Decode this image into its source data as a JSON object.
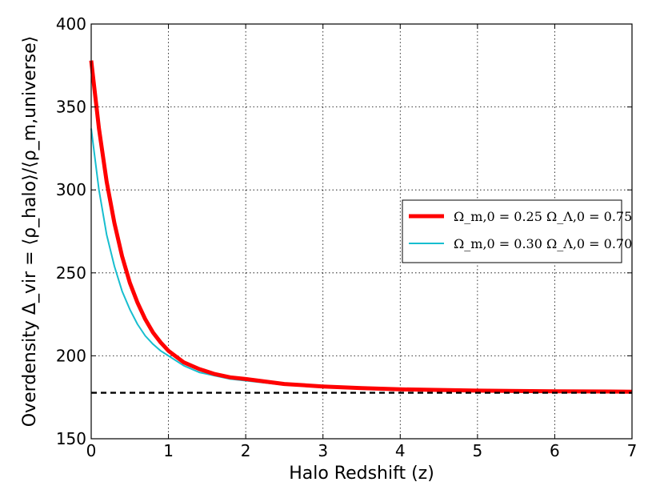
{
  "chart_data": {
    "type": "line",
    "title": "",
    "xlabel": "Halo Redshift (z)",
    "ylabel": "Overdensity Δ_vir = ⟨ρ_halo⟩/⟨ρ_m,universe⟩",
    "xlim": [
      0,
      7
    ],
    "ylim": [
      150,
      400
    ],
    "xticks": [
      0,
      1,
      2,
      3,
      4,
      5,
      6,
      7
    ],
    "yticks": [
      150,
      200,
      250,
      300,
      350,
      400
    ],
    "grid": true,
    "legend_position": "right",
    "series": [
      {
        "name": "Ω_m,0 = 0.25   Ω_Λ,0 = 0.75",
        "color": "#ff0000",
        "x": [
          0,
          0.1,
          0.2,
          0.3,
          0.4,
          0.5,
          0.6,
          0.7,
          0.8,
          0.9,
          1.0,
          1.2,
          1.4,
          1.6,
          1.8,
          2.0,
          2.5,
          3.0,
          3.5,
          4.0,
          5.0,
          6.0,
          7.0
        ],
        "y": [
          378,
          337,
          305,
          280,
          260,
          244,
          232,
          222,
          214,
          208,
          203,
          196,
          192,
          189,
          187,
          186,
          183,
          181.5,
          180.5,
          179.8,
          179.0,
          178.6,
          178.4
        ]
      },
      {
        "name": "Ω_m,0 = 0.30   Ω_Λ,0 = 0.70",
        "color": "#17becf",
        "x": [
          0,
          0.1,
          0.2,
          0.3,
          0.4,
          0.5,
          0.6,
          0.7,
          0.8,
          0.9,
          1.0,
          1.2,
          1.4,
          1.6,
          1.8,
          2.0,
          2.5,
          3.0,
          3.5,
          4.0,
          5.0,
          6.0,
          7.0
        ],
        "y": [
          337,
          300,
          273,
          254,
          239,
          228,
          219,
          212,
          207,
          203,
          200,
          194,
          190,
          188,
          186,
          185,
          182.5,
          181,
          180,
          179.3,
          178.7,
          178.4,
          178.2
        ]
      },
      {
        "name": "",
        "color": "#000000",
        "style": "dashed",
        "x": [
          0,
          7
        ],
        "y": [
          177.7,
          177.7
        ]
      }
    ]
  }
}
